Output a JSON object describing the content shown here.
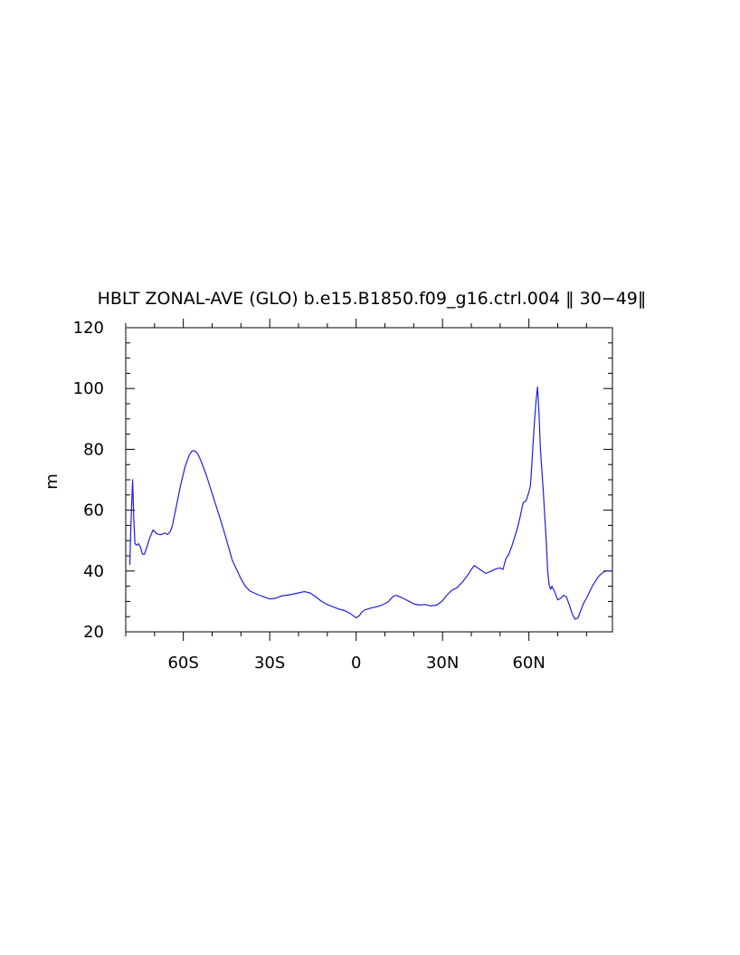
{
  "chart_data": {
    "type": "line",
    "title": "HBLT ZONAL-AVE (GLO) b.e15.B1850.f09_g16.ctrl.004 ‖ 30−49‖",
    "xlabel": "",
    "ylabel": "m",
    "xlim": [
      -80,
      89
    ],
    "ylim": [
      20,
      120
    ],
    "grid": false,
    "x_ticks": [
      -60,
      -30,
      0,
      30,
      60
    ],
    "x_tick_labels": [
      "60S",
      "30S",
      "0",
      "30N",
      "60N"
    ],
    "y_ticks": [
      20,
      40,
      60,
      80,
      100,
      120
    ],
    "y_tick_labels": [
      "20",
      "40",
      "60",
      "80",
      "100",
      "120"
    ],
    "colors": {
      "line": "#1f1fd6",
      "axes": "#000000"
    },
    "series": [
      {
        "x": [
          -78.6,
          -78.2,
          -77.6,
          -77.2,
          -76.8,
          -76.2,
          -75.5,
          -74.8,
          -74.2,
          -73.5,
          -72.8,
          -71.6,
          -70.5,
          -69.5,
          -68.5,
          -67.5,
          -66.5,
          -65.5,
          -64.5,
          -63.8,
          -62.5,
          -61,
          -59.5,
          -58,
          -57,
          -56,
          -55,
          -54,
          -53,
          -52,
          -50.5,
          -49,
          -47.5,
          -46,
          -44.5,
          -43,
          -41.5,
          -40,
          -38.5,
          -37,
          -35.5,
          -34,
          -32,
          -30,
          -28,
          -26,
          -23,
          -20,
          -18,
          -16,
          -14,
          -12,
          -10,
          -8,
          -6,
          -4,
          -2,
          -1,
          0,
          1,
          2,
          3,
          5,
          7,
          9,
          11,
          12,
          13,
          14,
          16,
          18,
          20,
          22,
          24,
          26,
          28,
          29,
          30,
          31,
          33,
          35,
          37,
          39,
          40,
          41,
          43,
          45,
          47,
          48,
          49,
          50,
          51,
          52,
          53,
          54,
          55,
          56,
          57,
          58,
          59,
          60,
          60.5,
          61,
          61.5,
          62,
          62.5,
          63,
          63.5,
          64,
          65,
          66,
          66.5,
          67,
          67.5,
          68,
          69,
          70,
          71,
          72,
          73,
          74,
          75,
          76,
          77,
          78,
          79,
          80,
          81,
          82,
          83,
          84,
          85,
          86,
          87,
          88,
          89
        ],
        "values": [
          42,
          55,
          70,
          57,
          49,
          48.5,
          49,
          47.5,
          45.5,
          45.5,
          47.5,
          51,
          53.5,
          52.5,
          52,
          52,
          52.5,
          52,
          53,
          55,
          61,
          68,
          74,
          78,
          79.5,
          79.5,
          78.5,
          76.5,
          74,
          71.5,
          67,
          62.5,
          58,
          53.5,
          48.5,
          43.5,
          40.5,
          37.5,
          35,
          33.5,
          32.8,
          32.2,
          31.5,
          30.8,
          31,
          31.8,
          32.2,
          32.8,
          33.2,
          32.8,
          31.5,
          30,
          29,
          28.2,
          27.5,
          27,
          26,
          25.3,
          24.6,
          25.2,
          26.5,
          27.2,
          27.8,
          28.2,
          28.8,
          29.8,
          30.8,
          31.8,
          32,
          31.2,
          30.2,
          29.2,
          28.8,
          29,
          28.5,
          28.8,
          29.5,
          30.2,
          31.5,
          33.5,
          34.5,
          36.5,
          39,
          40.5,
          41.8,
          40.5,
          39.2,
          40,
          40.5,
          40.8,
          41,
          40.5,
          44,
          45.5,
          48,
          51,
          54,
          58,
          62.5,
          63,
          66,
          68,
          75,
          83,
          90,
          96,
          100.5,
          92,
          80,
          66,
          50,
          40,
          35.5,
          34,
          35,
          33,
          30.5,
          31,
          32,
          31.5,
          29,
          26,
          24.2,
          24.5,
          27,
          29.5,
          31,
          33,
          35,
          36.5,
          38,
          39,
          39.7,
          40,
          40,
          40
        ]
      }
    ]
  }
}
